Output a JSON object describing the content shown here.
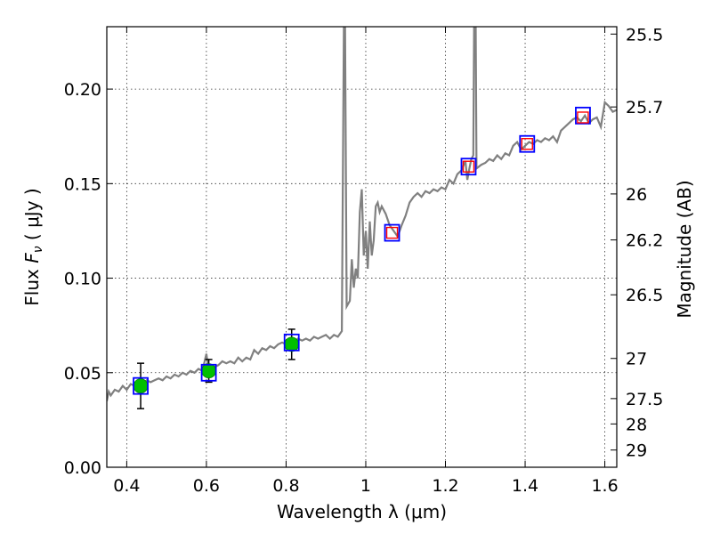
{
  "chart_data": {
    "type": "line",
    "xlabel": "Wavelength  λ (μm)",
    "ylabel": "Flux  F_ν  ( μJy )",
    "ylabel_right": "Magnitude (AB)",
    "xlim": [
      0.35,
      1.63
    ],
    "ylim": [
      0.0,
      0.233
    ],
    "grid": true,
    "x_ticks": [
      {
        "value": 0.4,
        "label": "0.4"
      },
      {
        "value": 0.6,
        "label": "0.6"
      },
      {
        "value": 0.8,
        "label": "0.8"
      },
      {
        "value": 1.0,
        "label": "1"
      },
      {
        "value": 1.2,
        "label": "1.2"
      },
      {
        "value": 1.4,
        "label": "1.4"
      },
      {
        "value": 1.6,
        "label": "1.6"
      }
    ],
    "y_ticks": [
      {
        "value": 0.0,
        "label": "0.00"
      },
      {
        "value": 0.05,
        "label": "0.05"
      },
      {
        "value": 0.1,
        "label": "0.10"
      },
      {
        "value": 0.15,
        "label": "0.15"
      },
      {
        "value": 0.2,
        "label": "0.20"
      }
    ],
    "mag_ticks": [
      {
        "value": 25.5,
        "label": "25.5"
      },
      {
        "value": 25.7,
        "label": "25.7"
      },
      {
        "value": 26.0,
        "label": "26"
      },
      {
        "value": 26.2,
        "label": "26.2"
      },
      {
        "value": 26.5,
        "label": "26.5"
      },
      {
        "value": 27.0,
        "label": "27"
      },
      {
        "value": 27.5,
        "label": "27.5"
      },
      {
        "value": 28.0,
        "label": "28"
      },
      {
        "value": 29.0,
        "label": "29"
      }
    ],
    "colors": {
      "model": "#808080",
      "observed": "#00c000",
      "model_box": "#0000ff",
      "ir_box": "#ff0000",
      "errorbar": "#000000"
    },
    "model_spectrum": [
      [
        0.35,
        0.035
      ],
      [
        0.355,
        0.04
      ],
      [
        0.36,
        0.038
      ],
      [
        0.37,
        0.041
      ],
      [
        0.38,
        0.04
      ],
      [
        0.39,
        0.043
      ],
      [
        0.4,
        0.041
      ],
      [
        0.41,
        0.044
      ],
      [
        0.42,
        0.043
      ],
      [
        0.43,
        0.045
      ],
      [
        0.44,
        0.044
      ],
      [
        0.45,
        0.046
      ],
      [
        0.46,
        0.045
      ],
      [
        0.47,
        0.046
      ],
      [
        0.48,
        0.047
      ],
      [
        0.49,
        0.046
      ],
      [
        0.5,
        0.048
      ],
      [
        0.51,
        0.047
      ],
      [
        0.52,
        0.049
      ],
      [
        0.53,
        0.048
      ],
      [
        0.54,
        0.05
      ],
      [
        0.55,
        0.049
      ],
      [
        0.56,
        0.051
      ],
      [
        0.57,
        0.05
      ],
      [
        0.58,
        0.052
      ],
      [
        0.59,
        0.051
      ],
      [
        0.6,
        0.06
      ],
      [
        0.605,
        0.052
      ],
      [
        0.62,
        0.053
      ],
      [
        0.63,
        0.054
      ],
      [
        0.64,
        0.056
      ],
      [
        0.65,
        0.055
      ],
      [
        0.66,
        0.056
      ],
      [
        0.67,
        0.055
      ],
      [
        0.68,
        0.058
      ],
      [
        0.69,
        0.056
      ],
      [
        0.7,
        0.058
      ],
      [
        0.71,
        0.057
      ],
      [
        0.72,
        0.062
      ],
      [
        0.73,
        0.06
      ],
      [
        0.74,
        0.063
      ],
      [
        0.75,
        0.062
      ],
      [
        0.76,
        0.064
      ],
      [
        0.77,
        0.063
      ],
      [
        0.78,
        0.065
      ],
      [
        0.79,
        0.066
      ],
      [
        0.8,
        0.065
      ],
      [
        0.81,
        0.067
      ],
      [
        0.82,
        0.066
      ],
      [
        0.83,
        0.068
      ],
      [
        0.84,
        0.067
      ],
      [
        0.85,
        0.068
      ],
      [
        0.86,
        0.067
      ],
      [
        0.87,
        0.069
      ],
      [
        0.88,
        0.068
      ],
      [
        0.89,
        0.069
      ],
      [
        0.9,
        0.07
      ],
      [
        0.91,
        0.068
      ],
      [
        0.92,
        0.07
      ],
      [
        0.93,
        0.069
      ],
      [
        0.94,
        0.072
      ],
      [
        0.945,
        0.233
      ],
      [
        0.948,
        0.233
      ],
      [
        0.952,
        0.085
      ],
      [
        0.96,
        0.088
      ],
      [
        0.965,
        0.11
      ],
      [
        0.97,
        0.095
      ],
      [
        0.975,
        0.105
      ],
      [
        0.98,
        0.1
      ],
      [
        0.985,
        0.135
      ],
      [
        0.99,
        0.147
      ],
      [
        0.995,
        0.112
      ],
      [
        1.0,
        0.125
      ],
      [
        1.005,
        0.105
      ],
      [
        1.01,
        0.13
      ],
      [
        1.015,
        0.112
      ],
      [
        1.02,
        0.12
      ],
      [
        1.025,
        0.138
      ],
      [
        1.03,
        0.14
      ],
      [
        1.035,
        0.135
      ],
      [
        1.04,
        0.138
      ],
      [
        1.05,
        0.134
      ],
      [
        1.06,
        0.128
      ],
      [
        1.07,
        0.125
      ],
      [
        1.08,
        0.122
      ],
      [
        1.09,
        0.128
      ],
      [
        1.1,
        0.133
      ],
      [
        1.11,
        0.14
      ],
      [
        1.12,
        0.143
      ],
      [
        1.13,
        0.145
      ],
      [
        1.14,
        0.143
      ],
      [
        1.15,
        0.146
      ],
      [
        1.16,
        0.145
      ],
      [
        1.17,
        0.147
      ],
      [
        1.18,
        0.146
      ],
      [
        1.19,
        0.148
      ],
      [
        1.2,
        0.147
      ],
      [
        1.21,
        0.152
      ],
      [
        1.22,
        0.15
      ],
      [
        1.23,
        0.155
      ],
      [
        1.24,
        0.157
      ],
      [
        1.25,
        0.162
      ],
      [
        1.255,
        0.152
      ],
      [
        1.26,
        0.158
      ],
      [
        1.265,
        0.163
      ],
      [
        1.27,
        0.165
      ],
      [
        1.272,
        0.233
      ],
      [
        1.276,
        0.233
      ],
      [
        1.278,
        0.158
      ],
      [
        1.29,
        0.16
      ],
      [
        1.3,
        0.161
      ],
      [
        1.31,
        0.163
      ],
      [
        1.32,
        0.162
      ],
      [
        1.33,
        0.165
      ],
      [
        1.34,
        0.163
      ],
      [
        1.35,
        0.166
      ],
      [
        1.36,
        0.165
      ],
      [
        1.37,
        0.17
      ],
      [
        1.38,
        0.172
      ],
      [
        1.39,
        0.168
      ],
      [
        1.4,
        0.17
      ],
      [
        1.41,
        0.172
      ],
      [
        1.42,
        0.171
      ],
      [
        1.43,
        0.173
      ],
      [
        1.44,
        0.172
      ],
      [
        1.45,
        0.174
      ],
      [
        1.46,
        0.173
      ],
      [
        1.47,
        0.175
      ],
      [
        1.48,
        0.172
      ],
      [
        1.49,
        0.178
      ],
      [
        1.5,
        0.18
      ],
      [
        1.51,
        0.182
      ],
      [
        1.52,
        0.184
      ],
      [
        1.53,
        0.185
      ],
      [
        1.54,
        0.183
      ],
      [
        1.55,
        0.186
      ],
      [
        1.56,
        0.182
      ],
      [
        1.57,
        0.184
      ],
      [
        1.58,
        0.185
      ],
      [
        1.59,
        0.18
      ],
      [
        1.6,
        0.193
      ],
      [
        1.61,
        0.191
      ],
      [
        1.62,
        0.188
      ],
      [
        1.63,
        0.189
      ]
    ],
    "observed_points": [
      {
        "x": 0.435,
        "y": 0.043,
        "err": 0.012
      },
      {
        "x": 0.606,
        "y": 0.051,
        "err": 0.006
      },
      {
        "x": 0.814,
        "y": 0.065,
        "err": 0.008
      }
    ],
    "model_photometry": [
      {
        "x": 0.435,
        "y": 0.043
      },
      {
        "x": 0.606,
        "y": 0.05
      },
      {
        "x": 0.814,
        "y": 0.066
      },
      {
        "x": 1.066,
        "y": 0.124
      },
      {
        "x": 1.258,
        "y": 0.159
      },
      {
        "x": 1.405,
        "y": 0.171
      },
      {
        "x": 1.545,
        "y": 0.186
      }
    ],
    "ir_points": [
      {
        "x": 1.066,
        "y": 0.124
      },
      {
        "x": 1.258,
        "y": 0.159
      },
      {
        "x": 1.405,
        "y": 0.171
      },
      {
        "x": 1.545,
        "y": 0.185
      }
    ]
  }
}
